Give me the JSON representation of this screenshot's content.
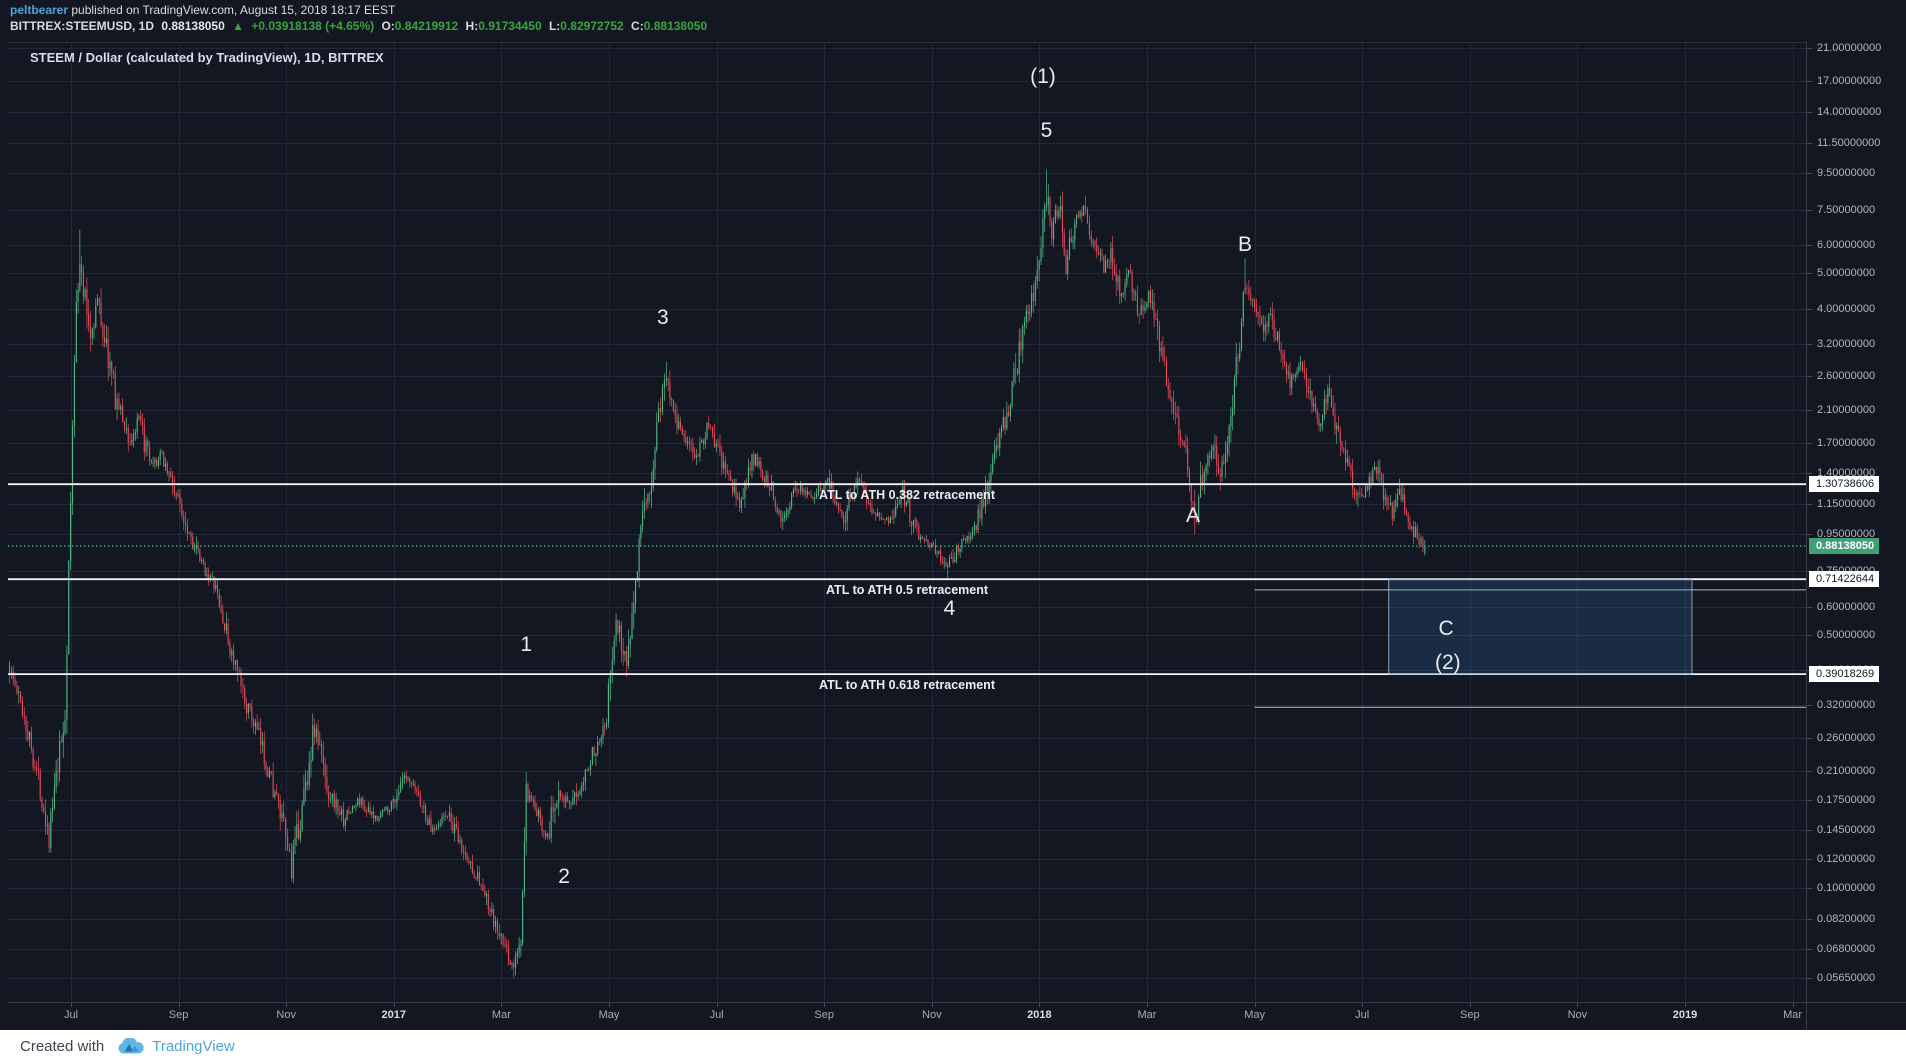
{
  "publish_bar": {
    "username": "peltbearer",
    "suffix": "published on TradingView.com, August 15, 2018 18:17 EEST"
  },
  "symbol_bar": {
    "symbol_interval": "BITTREX:STEEMUSD, 1D",
    "last": "0.88138050",
    "change_icon": "▲",
    "change": "+0.03918138 (+4.65%)",
    "o_label": "O:",
    "o": "0.84219912",
    "h_label": "H:",
    "h": "0.91734450",
    "l_label": "L:",
    "l": "0.82972752",
    "c_label": "C:",
    "c": "0.88138050"
  },
  "chart_title": "STEEM / Dollar (calculated by TradingView), 1D, BITTREX",
  "footer": {
    "created_with": "Created with",
    "brand": "TradingView"
  },
  "colors": {
    "up": "#53b987",
    "down": "#eb4d5c",
    "grid": "#21263a",
    "pane_border": "#2a2e39",
    "level_line": "#f2f3f6",
    "partial_line": "#b9bec9",
    "price_line": "#3fbf8c",
    "badge_green": "#3fa076",
    "box_fill": "rgba(56,121,189,0.22)",
    "box_stroke": "rgba(168,192,215,0.8)"
  },
  "chart_data": {
    "type": "candlestick",
    "title": "STEEM / Dollar (calculated by TradingView), 1D, BITTREX",
    "symbol": "BITTREX:STEEMUSD",
    "interval": "1D",
    "scale": "logarithmic",
    "ylim": [
      0.0565,
      21.0
    ],
    "x_range": [
      "2016-05-26",
      "2019-04-01"
    ],
    "grid": true,
    "price_ticks": [
      21,
      17,
      14,
      11.5,
      9.5,
      7.5,
      6,
      5,
      4,
      3.2,
      2.6,
      2.1,
      1.7,
      1.4,
      1.15,
      0.95,
      0.75,
      0.6,
      0.5,
      0.4,
      0.32,
      0.26,
      0.21,
      0.175,
      0.145,
      0.12,
      0.1,
      0.082,
      0.068,
      0.0565
    ],
    "time_ticks": [
      {
        "label": "Jul",
        "m": 0
      },
      {
        "label": "Sep",
        "m": 2
      },
      {
        "label": "Nov",
        "m": 4
      },
      {
        "label": "2017",
        "m": 6,
        "year": true
      },
      {
        "label": "Mar",
        "m": 8
      },
      {
        "label": "May",
        "m": 10
      },
      {
        "label": "Jul",
        "m": 12
      },
      {
        "label": "Sep",
        "m": 14
      },
      {
        "label": "Nov",
        "m": 16
      },
      {
        "label": "2018",
        "m": 18,
        "year": true
      },
      {
        "label": "Mar",
        "m": 20
      },
      {
        "label": "May",
        "m": 22
      },
      {
        "label": "Jul",
        "m": 24
      },
      {
        "label": "Sep",
        "m": 26
      },
      {
        "label": "Nov",
        "m": 28
      },
      {
        "label": "2019",
        "m": 30,
        "year": true
      },
      {
        "label": "Mar",
        "m": 32
      }
    ],
    "last_price": 0.8813805,
    "last_candle": {
      "o": 0.84219912,
      "h": 0.9173445,
      "l": 0.82972752,
      "c": 0.8813805
    },
    "levels": [
      {
        "label": "ATL to ATH 0.382 retracement",
        "price": 1.30738606,
        "badge": "1.30738606"
      },
      {
        "label": "ATL to ATH 0.5 retracement",
        "price": 0.71422644,
        "badge": "0.71422644"
      },
      {
        "label": "ATL to ATH 0.618 retracement",
        "price": 0.39018269,
        "badge": "0.39018269"
      }
    ],
    "partial_lines": [
      {
        "price": 0.667,
        "from": "2018-05-01"
      },
      {
        "price": 0.316,
        "from": "2018-05-01"
      }
    ],
    "projection_box": {
      "from": "2018-07-16",
      "to": "2019-01-05",
      "top": 0.71422644,
      "bottom": 0.39018269,
      "labels": [
        {
          "text": "C",
          "d": "2018-08-18",
          "p": 0.52
        },
        {
          "text": "(2)",
          "d": "2018-08-19",
          "p": 0.42
        }
      ]
    },
    "wave_labels": [
      {
        "text": "(1)",
        "d": "2018-01-03",
        "p": 17.5
      },
      {
        "text": "5",
        "d": "2018-01-05",
        "p": 12.4
      },
      {
        "text": "3",
        "d": "2017-06-01",
        "p": 3.77
      },
      {
        "text": "B",
        "d": "2018-04-26",
        "p": 6.0
      },
      {
        "text": "A",
        "d": "2018-03-27",
        "p": 1.07
      },
      {
        "text": "1",
        "d": "2017-03-15",
        "p": 0.47
      },
      {
        "text": "4",
        "d": "2017-11-11",
        "p": 0.59
      },
      {
        "text": "2",
        "d": "2017-04-06",
        "p": 0.107
      }
    ],
    "anchors": [
      [
        "2016-05-26",
        0.42
      ],
      [
        "2016-06-05",
        0.3
      ],
      [
        "2016-06-14",
        0.19
      ],
      [
        "2016-06-19",
        0.14,
        null,
        0.125
      ],
      [
        "2016-06-28",
        0.3
      ],
      [
        "2016-07-04",
        4.5
      ],
      [
        "2016-07-06",
        5.2,
        6.6
      ],
      [
        "2016-07-12",
        3.4
      ],
      [
        "2016-07-16",
        4.2
      ],
      [
        "2016-07-26",
        2.3
      ],
      [
        "2016-08-04",
        1.7
      ],
      [
        "2016-08-09",
        1.95
      ],
      [
        "2016-08-16",
        1.43
      ],
      [
        "2016-08-22",
        1.58
      ],
      [
        "2016-08-29",
        1.26
      ],
      [
        "2016-09-06",
        1.0
      ],
      [
        "2016-09-13",
        0.8
      ],
      [
        "2016-09-21",
        0.69
      ],
      [
        "2016-09-30",
        0.46
      ],
      [
        "2016-10-08",
        0.33
      ],
      [
        "2016-10-15",
        0.27
      ],
      [
        "2016-10-23",
        0.2
      ],
      [
        "2016-10-30",
        0.145
      ],
      [
        "2016-11-04",
        0.115
      ],
      [
        "2016-11-09",
        0.155
      ],
      [
        "2016-11-17",
        0.28
      ],
      [
        "2016-11-25",
        0.185
      ],
      [
        "2016-12-03",
        0.155
      ],
      [
        "2016-12-12",
        0.175
      ],
      [
        "2016-12-20",
        0.155
      ],
      [
        "2016-12-30",
        0.17
      ],
      [
        "2017-01-07",
        0.2
      ],
      [
        "2017-01-14",
        0.185
      ],
      [
        "2017-01-22",
        0.145
      ],
      [
        "2017-02-01",
        0.16
      ],
      [
        "2017-02-10",
        0.125
      ],
      [
        "2017-02-19",
        0.105
      ],
      [
        "2017-02-27",
        0.08
      ],
      [
        "2017-03-03",
        0.068
      ],
      [
        "2017-03-08",
        0.06,
        null,
        0.0565
      ],
      [
        "2017-03-12",
        0.072
      ],
      [
        "2017-03-15",
        0.18
      ],
      [
        "2017-03-20",
        0.165
      ],
      [
        "2017-03-27",
        0.14
      ],
      [
        "2017-04-03",
        0.19
      ],
      [
        "2017-04-10",
        0.165
      ],
      [
        "2017-04-16",
        0.2
      ],
      [
        "2017-04-23",
        0.24
      ],
      [
        "2017-04-30",
        0.3
      ],
      [
        "2017-05-05",
        0.55
      ],
      [
        "2017-05-11",
        0.42
      ],
      [
        "2017-05-18",
        0.9
      ],
      [
        "2017-05-25",
        1.35
      ],
      [
        "2017-05-29",
        2.1
      ],
      [
        "2017-06-03",
        2.6,
        2.85
      ],
      [
        "2017-06-10",
        1.9
      ],
      [
        "2017-06-19",
        1.55
      ],
      [
        "2017-06-27",
        1.9
      ],
      [
        "2017-07-05",
        1.45
      ],
      [
        "2017-07-14",
        1.15
      ],
      [
        "2017-07-22",
        1.55
      ],
      [
        "2017-07-31",
        1.3
      ],
      [
        "2017-08-08",
        1.05
      ],
      [
        "2017-08-17",
        1.3
      ],
      [
        "2017-08-25",
        1.2
      ],
      [
        "2017-09-03",
        1.35
      ],
      [
        "2017-09-12",
        1.05
      ],
      [
        "2017-09-20",
        1.4
      ],
      [
        "2017-09-28",
        1.12
      ],
      [
        "2017-10-07",
        1.02
      ],
      [
        "2017-10-15",
        1.25
      ],
      [
        "2017-10-23",
        0.95
      ],
      [
        "2017-11-02",
        0.88
      ],
      [
        "2017-11-10",
        0.765,
        null,
        0.72
      ],
      [
        "2017-11-17",
        0.9
      ],
      [
        "2017-11-24",
        0.95
      ],
      [
        "2017-12-01",
        1.25
      ],
      [
        "2017-12-08",
        1.7
      ],
      [
        "2017-12-15",
        2.2
      ],
      [
        "2017-12-22",
        3.4
      ],
      [
        "2017-12-28",
        4.4
      ],
      [
        "2018-01-03",
        6.5
      ],
      [
        "2018-01-05",
        8.3,
        9.7
      ],
      [
        "2018-01-08",
        6.8
      ],
      [
        "2018-01-12",
        7.8
      ],
      [
        "2018-01-16",
        5.5
      ],
      [
        "2018-01-21",
        6.9
      ],
      [
        "2018-01-26",
        7.6
      ],
      [
        "2018-02-01",
        6.2
      ],
      [
        "2018-02-07",
        5.2
      ],
      [
        "2018-02-11",
        5.8
      ],
      [
        "2018-02-16",
        4.4
      ],
      [
        "2018-02-21",
        5.0
      ],
      [
        "2018-02-27",
        3.9
      ],
      [
        "2018-03-02",
        4.4
      ],
      [
        "2018-03-08",
        3.2
      ],
      [
        "2018-03-13",
        2.5
      ],
      [
        "2018-03-19",
        1.9
      ],
      [
        "2018-03-25",
        1.4
      ],
      [
        "2018-03-28",
        1.05,
        null,
        0.95
      ],
      [
        "2018-04-02",
        1.4
      ],
      [
        "2018-04-08",
        1.7
      ],
      [
        "2018-04-12",
        1.4
      ],
      [
        "2018-04-17",
        1.9
      ],
      [
        "2018-04-22",
        3.0
      ],
      [
        "2018-04-26",
        4.7,
        5.5
      ],
      [
        "2018-05-01",
        4.15
      ],
      [
        "2018-05-06",
        3.4
      ],
      [
        "2018-05-10",
        3.9
      ],
      [
        "2018-05-16",
        3.0
      ],
      [
        "2018-05-21",
        2.5
      ],
      [
        "2018-05-27",
        2.8
      ],
      [
        "2018-06-02",
        2.2
      ],
      [
        "2018-06-08",
        1.9
      ],
      [
        "2018-06-13",
        2.4
      ],
      [
        "2018-06-19",
        1.7
      ],
      [
        "2018-06-25",
        1.4
      ],
      [
        "2018-06-29",
        1.15
      ],
      [
        "2018-07-04",
        1.3
      ],
      [
        "2018-07-09",
        1.45
      ],
      [
        "2018-07-13",
        1.25
      ],
      [
        "2018-07-18",
        1.1
      ],
      [
        "2018-07-22",
        1.25
      ],
      [
        "2018-07-27",
        1.05
      ],
      [
        "2018-07-31",
        0.95
      ],
      [
        "2018-08-06",
        0.8813805,
        null,
        0.82972752
      ]
    ]
  }
}
